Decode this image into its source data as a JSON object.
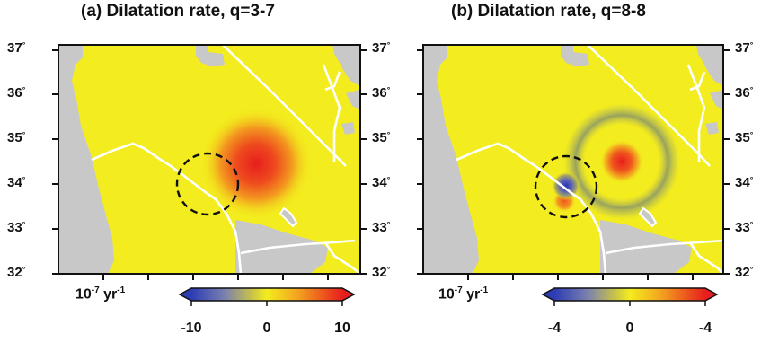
{
  "panels": [
    {
      "title": "(a)  Dilatation rate, q=3-7",
      "colorbar": {
        "labels": [
          "-10",
          "0",
          "10"
        ],
        "unit_base": "10",
        "unit_exp": "-7",
        "unit_tail": " yr",
        "unit_exp2": "-1"
      }
    },
    {
      "title": "(b)  Dilatation rate, q=8-8",
      "colorbar": {
        "labels": [
          "-4",
          "0",
          "-4"
        ],
        "unit_base": "10",
        "unit_exp": "-7",
        "unit_tail": " yr",
        "unit_exp2": "-1"
      }
    }
  ],
  "latitudes": [
    "37",
    "36",
    "35",
    "34",
    "33",
    "32"
  ],
  "colors": {
    "field": "#f3ec1e",
    "nodata": "#c8c8c8",
    "positive": "#e8231e",
    "negative": "#2f3bb0",
    "borders": "#ffffff"
  }
}
